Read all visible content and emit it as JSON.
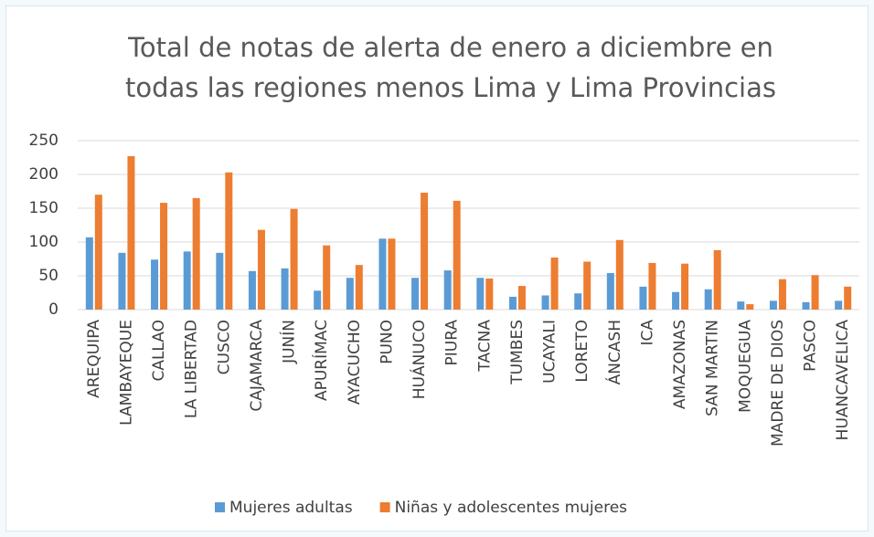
{
  "chart_data": {
    "type": "bar",
    "title": "Total de notas de alerta de enero a diciembre en todas las regiones menos Lima y Lima Provincias",
    "categories": [
      "AREQUIPA",
      "LAMBAYEQUE",
      "CALLAO",
      "LA LIBERTAD",
      "CUSCO",
      "CAJAMARCA",
      "JUNÍN",
      "APURÍMAC",
      "AYACUCHO",
      "PUNO",
      "HUÁNUCO",
      "PIURA",
      "TACNA",
      "TUMBES",
      "UCAYALI",
      "LORETO",
      "ÁNCASH",
      "ICA",
      "AMAZONAS",
      "SAN MARTIN",
      "MOQUEGUA",
      "MADRE DE DIOS",
      "PASCO",
      "HUANCAVELICA"
    ],
    "series": [
      {
        "name": "Mujeres adultas",
        "color": "#5b9bd5",
        "values": [
          107,
          84,
          74,
          86,
          84,
          57,
          61,
          28,
          47,
          105,
          47,
          58,
          47,
          19,
          21,
          24,
          54,
          34,
          26,
          30,
          12,
          13,
          11,
          13
        ]
      },
      {
        "name": "Niñas y adolescentes mujeres",
        "color": "#ed7d31",
        "values": [
          170,
          227,
          158,
          165,
          203,
          118,
          149,
          95,
          66,
          105,
          173,
          161,
          46,
          35,
          77,
          71,
          103,
          69,
          68,
          88,
          8,
          45,
          51,
          34
        ]
      }
    ],
    "ylim": [
      0,
      250
    ],
    "yticks": [
      0,
      50,
      100,
      150,
      200,
      250
    ],
    "grid": true,
    "legend": "bottom"
  }
}
